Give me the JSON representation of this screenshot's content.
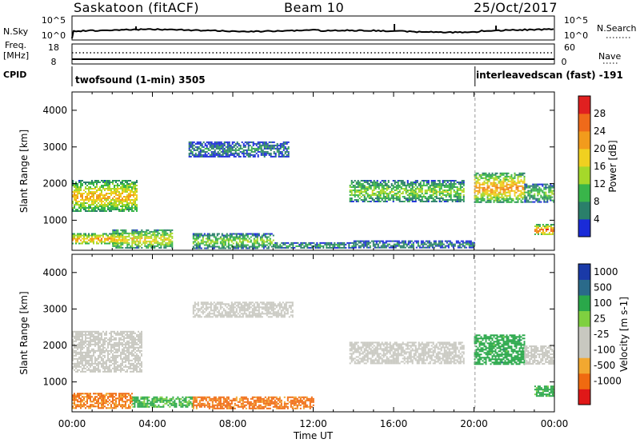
{
  "header": {
    "station": "Saskatoon (fitACF)",
    "beam": "Beam 10",
    "date": "25/Oct/2017"
  },
  "strip": {
    "nsky_label": "N.Sky",
    "nsky_ticks": [
      "10^5",
      "10^0"
    ],
    "nsearch_label": "N.Search",
    "nsearch_ticks": [
      "10^5",
      "10^0"
    ],
    "freq_label_1": "Freq.",
    "freq_label_2": "[MHz]",
    "freq_ticks": [
      "18",
      "8"
    ],
    "nave_label": "Nave",
    "nave_ticks": [
      "60",
      "0"
    ],
    "cpid_label": "CPID",
    "cpid_1": "twofsound (1-min) 3505",
    "cpid_2": "interleavedscan (fast) -191"
  },
  "colors": {
    "power_scale": [
      "#1a2bd8",
      "#2a7f6a",
      "#39b54a",
      "#a5d82a",
      "#f0d020",
      "#f29b1c",
      "#ef6a1a",
      "#e02020"
    ],
    "velocity_scale": [
      "#e01818",
      "#f06a10",
      "#f2a830",
      "#c8c8c0",
      "#c8c8c0",
      "#7fd040",
      "#2aa84a",
      "#2a6a8a",
      "#1a3aa8"
    ]
  },
  "chart_data": [
    {
      "type": "heatmap",
      "title": "Power",
      "ylabel": "Slant Range [km]",
      "xlabel": "Time UT",
      "x_ticks": [
        "00:00",
        "04:00",
        "08:00",
        "12:00",
        "16:00",
        "20:00",
        "00:00"
      ],
      "y_ticks": [
        "1000",
        "2000",
        "3000",
        "4000"
      ],
      "ylim": [
        180,
        4500
      ],
      "xlim_hours": [
        0,
        24
      ],
      "colorbar": {
        "label": "Power [dB]",
        "ticks": [
          "4",
          "8",
          "12",
          "16",
          "20",
          "24",
          "28"
        ],
        "range": [
          0,
          30
        ]
      },
      "regions": [
        {
          "t": [
            0.0,
            3.2
          ],
          "r": [
            1250,
            2100
          ],
          "level": 18
        },
        {
          "t": [
            0.0,
            2.5
          ],
          "r": [
            350,
            650
          ],
          "level": 20
        },
        {
          "t": [
            2.0,
            5.0
          ],
          "r": [
            250,
            750
          ],
          "level": 16
        },
        {
          "t": [
            5.8,
            10.8
          ],
          "r": [
            2750,
            3150
          ],
          "level": 6
        },
        {
          "t": [
            6.0,
            10.0
          ],
          "r": [
            250,
            650
          ],
          "level": 12
        },
        {
          "t": [
            10.0,
            14.0
          ],
          "r": [
            250,
            400
          ],
          "level": 8
        },
        {
          "t": [
            13.8,
            19.5
          ],
          "r": [
            1500,
            2100
          ],
          "level": 12
        },
        {
          "t": [
            14.0,
            20.0
          ],
          "r": [
            250,
            450
          ],
          "level": 6
        },
        {
          "t": [
            20.0,
            22.5
          ],
          "r": [
            1500,
            2300
          ],
          "level": 20
        },
        {
          "t": [
            22.5,
            24.0
          ],
          "r": [
            1500,
            2000
          ],
          "level": 10
        },
        {
          "t": [
            23.0,
            24.0
          ],
          "r": [
            600,
            900
          ],
          "level": 24
        }
      ]
    },
    {
      "type": "heatmap",
      "title": "Velocity",
      "ylabel": "Slant Range [km]",
      "xlabel": "Time UT",
      "x_ticks": [
        "00:00",
        "04:00",
        "08:00",
        "12:00",
        "16:00",
        "20:00",
        "00:00"
      ],
      "y_ticks": [
        "1000",
        "2000",
        "3000",
        "4000"
      ],
      "ylim": [
        180,
        4500
      ],
      "xlim_hours": [
        0,
        24
      ],
      "colorbar": {
        "label": "Velocity [m s^-1]",
        "ticks": [
          "1000",
          "500",
          "100",
          "25",
          "-25",
          "-100",
          "-500",
          "-1000"
        ],
        "range": [
          -1000,
          1000
        ]
      },
      "regions": [
        {
          "t": [
            0.0,
            3.5
          ],
          "r": [
            1300,
            2400
          ],
          "value": 0
        },
        {
          "t": [
            0.0,
            3.0
          ],
          "r": [
            300,
            700
          ],
          "value": -150
        },
        {
          "t": [
            3.0,
            6.0
          ],
          "r": [
            300,
            600
          ],
          "value": 150
        },
        {
          "t": [
            6.0,
            11.0
          ],
          "r": [
            2800,
            3200
          ],
          "value": 0
        },
        {
          "t": [
            6.0,
            12.0
          ],
          "r": [
            250,
            600
          ],
          "value": -200
        },
        {
          "t": [
            13.8,
            19.5
          ],
          "r": [
            1500,
            2100
          ],
          "value": 0
        },
        {
          "t": [
            20.0,
            22.5
          ],
          "r": [
            1500,
            2300
          ],
          "value": 300
        },
        {
          "t": [
            22.5,
            24.0
          ],
          "r": [
            1500,
            2000
          ],
          "value": 0
        },
        {
          "t": [
            23.0,
            24.0
          ],
          "r": [
            600,
            900
          ],
          "value": 200
        }
      ]
    }
  ]
}
